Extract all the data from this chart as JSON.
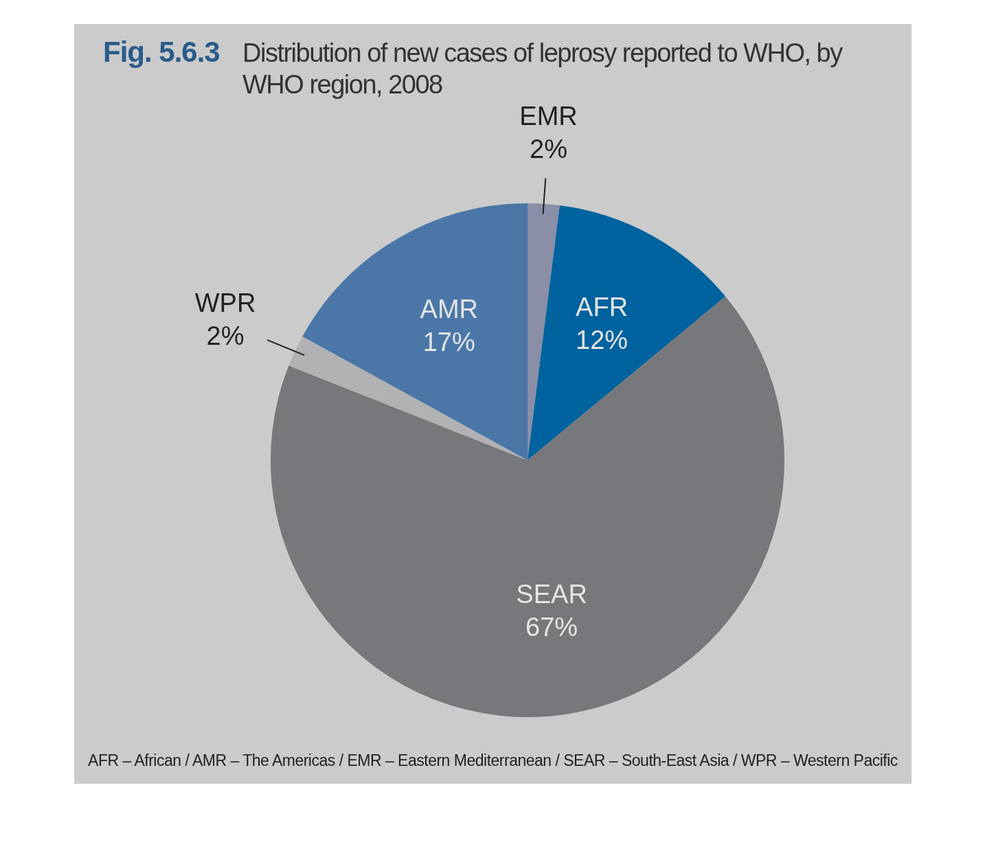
{
  "chart_data": {
    "type": "pie",
    "title": "Fig. 5.6.3",
    "subtitle": "Distribution of new cases of leprosy reported to WHO, by WHO region, 2008",
    "categories": [
      "EMR",
      "AFR",
      "SEAR",
      "WPR",
      "AMR"
    ],
    "values": [
      2,
      12,
      67,
      2,
      17
    ],
    "colors": [
      "#8a8ea6",
      "#00629e",
      "#77787b",
      "#b2b2b4",
      "#4a77a8"
    ],
    "value_labels": [
      "2%",
      "12%",
      "67%",
      "2%",
      "17%"
    ],
    "legend": false,
    "annotations": [
      "AFR – African / AMR – The Americas / EMR – Eastern Mediterranean / SEAR – South-East Asia / WPR – Western Pacific"
    ]
  }
}
